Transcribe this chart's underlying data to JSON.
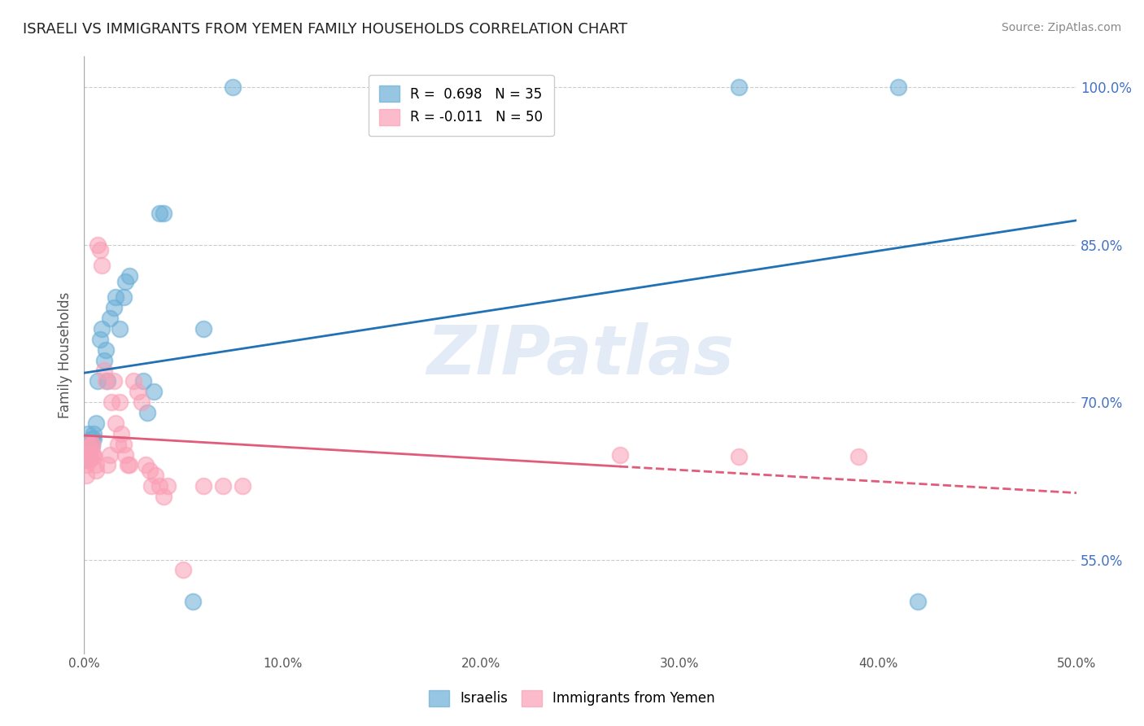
{
  "title": "ISRAELI VS IMMIGRANTS FROM YEMEN FAMILY HOUSEHOLDS CORRELATION CHART",
  "source": "Source: ZipAtlas.com",
  "xlabel": "",
  "ylabel": "Family Households",
  "xlim": [
    0.0,
    0.5
  ],
  "ylim": [
    0.46,
    1.03
  ],
  "yticks": [
    0.55,
    0.7,
    0.85,
    1.0
  ],
  "ytick_labels": [
    "55.0%",
    "70.0%",
    "85.0%",
    "100.0%"
  ],
  "xticks": [
    0.0,
    0.1,
    0.2,
    0.3,
    0.4,
    0.5
  ],
  "xtick_labels": [
    "0.0%",
    "10.0%",
    "20.0%",
    "30.0%",
    "40.0%",
    "50.0%"
  ],
  "blue_R": 0.698,
  "blue_N": 35,
  "pink_R": -0.011,
  "pink_N": 50,
  "blue_color": "#6baed6",
  "pink_color": "#fa9fb5",
  "blue_line_color": "#2171b5",
  "pink_line_color": "#e05c7a",
  "legend_blue_label": "R =  0.698   N = 35",
  "legend_pink_label": "R = -0.011   N = 50",
  "legend_blue_series": "Israelis",
  "legend_pink_series": "Immigrants from Yemen",
  "blue_x": [
    0.001,
    0.002,
    0.002,
    0.003,
    0.003,
    0.003,
    0.004,
    0.004,
    0.005,
    0.005,
    0.006,
    0.007,
    0.008,
    0.009,
    0.01,
    0.011,
    0.012,
    0.013,
    0.015,
    0.016,
    0.018,
    0.02,
    0.021,
    0.023,
    0.03,
    0.032,
    0.035,
    0.038,
    0.04,
    0.055,
    0.06,
    0.075,
    0.33,
    0.41,
    0.42
  ],
  "blue_y": [
    0.645,
    0.67,
    0.66,
    0.66,
    0.655,
    0.648,
    0.658,
    0.665,
    0.67,
    0.665,
    0.68,
    0.72,
    0.76,
    0.77,
    0.74,
    0.75,
    0.72,
    0.78,
    0.79,
    0.8,
    0.77,
    0.8,
    0.815,
    0.82,
    0.72,
    0.69,
    0.71,
    0.88,
    0.88,
    0.51,
    0.77,
    1.0,
    1.0,
    1.0,
    0.51
  ],
  "pink_x": [
    0.001,
    0.001,
    0.001,
    0.002,
    0.002,
    0.002,
    0.003,
    0.003,
    0.003,
    0.004,
    0.004,
    0.004,
    0.005,
    0.005,
    0.006,
    0.006,
    0.007,
    0.008,
    0.009,
    0.01,
    0.011,
    0.012,
    0.013,
    0.014,
    0.015,
    0.016,
    0.017,
    0.018,
    0.019,
    0.02,
    0.021,
    0.022,
    0.023,
    0.025,
    0.027,
    0.029,
    0.031,
    0.033,
    0.034,
    0.036,
    0.038,
    0.04,
    0.042,
    0.05,
    0.06,
    0.07,
    0.08,
    0.27,
    0.33,
    0.39
  ],
  "pink_y": [
    0.65,
    0.64,
    0.63,
    0.66,
    0.65,
    0.648,
    0.648,
    0.645,
    0.658,
    0.65,
    0.66,
    0.66,
    0.648,
    0.65,
    0.64,
    0.635,
    0.85,
    0.845,
    0.83,
    0.73,
    0.72,
    0.64,
    0.65,
    0.7,
    0.72,
    0.68,
    0.66,
    0.7,
    0.67,
    0.66,
    0.65,
    0.64,
    0.64,
    0.72,
    0.71,
    0.7,
    0.64,
    0.635,
    0.62,
    0.63,
    0.62,
    0.61,
    0.62,
    0.54,
    0.62,
    0.62,
    0.62,
    0.65,
    0.648,
    0.648
  ],
  "watermark": "ZIPatlas",
  "background_color": "#ffffff",
  "grid_color": "#cccccc"
}
